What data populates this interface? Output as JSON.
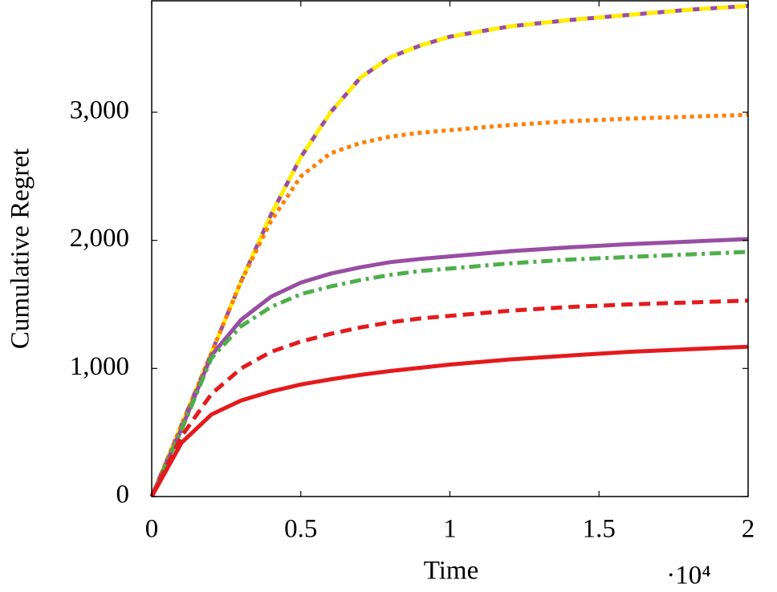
{
  "chart_data": {
    "type": "line",
    "xlabel": "Time",
    "ylabel": "Cumulative Regret",
    "annotations": [
      "·10⁴"
    ],
    "x": [
      0,
      1000,
      2000,
      3000,
      4000,
      5000,
      6000,
      7000,
      8000,
      9000,
      10000,
      12000,
      14000,
      16000,
      18000,
      20000
    ],
    "series": [
      {
        "color": "#984ea3",
        "style": "dashed",
        "values": [
          0,
          560,
          1120,
          1680,
          2200,
          2650,
          3000,
          3270,
          3430,
          3520,
          3590,
          3670,
          3720,
          3760,
          3800,
          3830
        ]
      },
      {
        "color": "#ffee00",
        "style": "dashed",
        "values": [
          0,
          560,
          1120,
          1680,
          2200,
          2650,
          3000,
          3270,
          3430,
          3520,
          3590,
          3670,
          3720,
          3760,
          3800,
          3830
        ]
      },
      {
        "color": "#ff7f00",
        "style": "dotted",
        "values": [
          0,
          560,
          1120,
          1680,
          2150,
          2500,
          2680,
          2760,
          2810,
          2840,
          2860,
          2900,
          2930,
          2950,
          2965,
          2980
        ]
      },
      {
        "color": "#984ea3",
        "style": "solid",
        "values": [
          0,
          530,
          1100,
          1380,
          1560,
          1670,
          1740,
          1790,
          1830,
          1855,
          1875,
          1915,
          1945,
          1970,
          1990,
          2010
        ]
      },
      {
        "color": "#4daf4a",
        "style": "dashdot",
        "values": [
          0,
          520,
          1080,
          1330,
          1480,
          1580,
          1640,
          1690,
          1730,
          1760,
          1780,
          1820,
          1850,
          1870,
          1890,
          1910
        ]
      },
      {
        "color": "#e41a1c",
        "style": "dashed",
        "values": [
          0,
          470,
          800,
          1000,
          1130,
          1210,
          1270,
          1320,
          1360,
          1390,
          1410,
          1450,
          1480,
          1500,
          1515,
          1530
        ]
      },
      {
        "color": "#e41a1c",
        "style": "solid",
        "values": [
          0,
          420,
          640,
          750,
          820,
          875,
          915,
          950,
          980,
          1005,
          1030,
          1070,
          1100,
          1130,
          1150,
          1170
        ]
      }
    ],
    "xlim": [
      0,
      20000
    ],
    "xticks": [
      0,
      {
        "value": 5000,
        "label": "0.5"
      },
      {
        "value": 10000,
        "label": "1"
      },
      {
        "value": 15000,
        "label": "1.5"
      },
      {
        "value": 20000,
        "label": "2"
      }
    ],
    "ylim": [
      0,
      3870
    ],
    "yticks": [
      0,
      {
        "value": 1000,
        "label": "1,000"
      },
      {
        "value": 2000,
        "label": "2,000"
      },
      {
        "value": 3000,
        "label": "3,000"
      }
    ],
    "grid": false
  }
}
